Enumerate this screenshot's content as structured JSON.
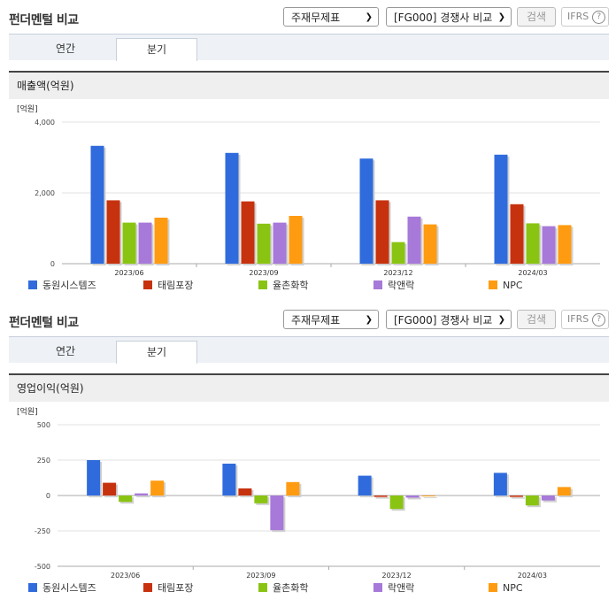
{
  "colors": [
    "#2f6bdc",
    "#c7320e",
    "#8ac413",
    "#a779d8",
    "#ff9b11"
  ],
  "panels": [
    {
      "title": "펀더멘털 비교",
      "select1": "주재무제표",
      "select2": "[FG000] 경쟁사 비교",
      "search": "검색",
      "ifrs": "IFRS",
      "ifrs_help": "?",
      "tab_annual": "연간",
      "tab_quarter": "분기",
      "metric": "매출액(억원)",
      "unit": "[억원]"
    },
    {
      "title": "펀더멘털 비교",
      "select1": "주재무제표",
      "select2": "[FG000] 경쟁사 비교",
      "search": "검색",
      "ifrs": "IFRS",
      "ifrs_help": "?",
      "tab_annual": "연간",
      "tab_quarter": "분기",
      "metric": "영업이익(억원)",
      "unit": "[억원]"
    }
  ],
  "chart_data": [
    {
      "type": "bar",
      "categories": [
        "2023/06",
        "2023/09",
        "2023/12",
        "2024/03"
      ],
      "ylabel": "[억원]",
      "ylim": [
        0,
        4000
      ],
      "yticks": [
        0,
        2000,
        4000
      ],
      "ytick_labels": [
        "0",
        "2,000",
        "4,000"
      ],
      "legend_position": "bottom",
      "series": [
        {
          "name": "동원시스템즈",
          "values": [
            3330,
            3130,
            2970,
            3080
          ]
        },
        {
          "name": "태림포장",
          "values": [
            1790,
            1760,
            1790,
            1680
          ]
        },
        {
          "name": "율촌화학",
          "values": [
            1160,
            1130,
            610,
            1140
          ]
        },
        {
          "name": "락앤락",
          "values": [
            1160,
            1160,
            1330,
            1060
          ]
        },
        {
          "name": "NPC",
          "values": [
            1300,
            1350,
            1110,
            1090
          ]
        }
      ]
    },
    {
      "type": "bar",
      "categories": [
        "2023/06",
        "2023/09",
        "2023/12",
        "2024/03"
      ],
      "ylabel": "[억원]",
      "ylim": [
        -500,
        500
      ],
      "yticks": [
        -500,
        -250,
        0,
        250,
        500
      ],
      "ytick_labels": [
        "-500",
        "-250",
        "0",
        "250",
        "500"
      ],
      "legend_position": "bottom",
      "series": [
        {
          "name": "동원시스템즈",
          "values": [
            250,
            225,
            140,
            160
          ]
        },
        {
          "name": "태림포장",
          "values": [
            90,
            50,
            -10,
            -10
          ]
        },
        {
          "name": "율촌화학",
          "values": [
            -45,
            -55,
            -95,
            -70
          ]
        },
        {
          "name": "락앤락",
          "values": [
            15,
            -245,
            -15,
            -35
          ]
        },
        {
          "name": "NPC",
          "values": [
            105,
            95,
            0,
            60
          ]
        }
      ]
    }
  ]
}
